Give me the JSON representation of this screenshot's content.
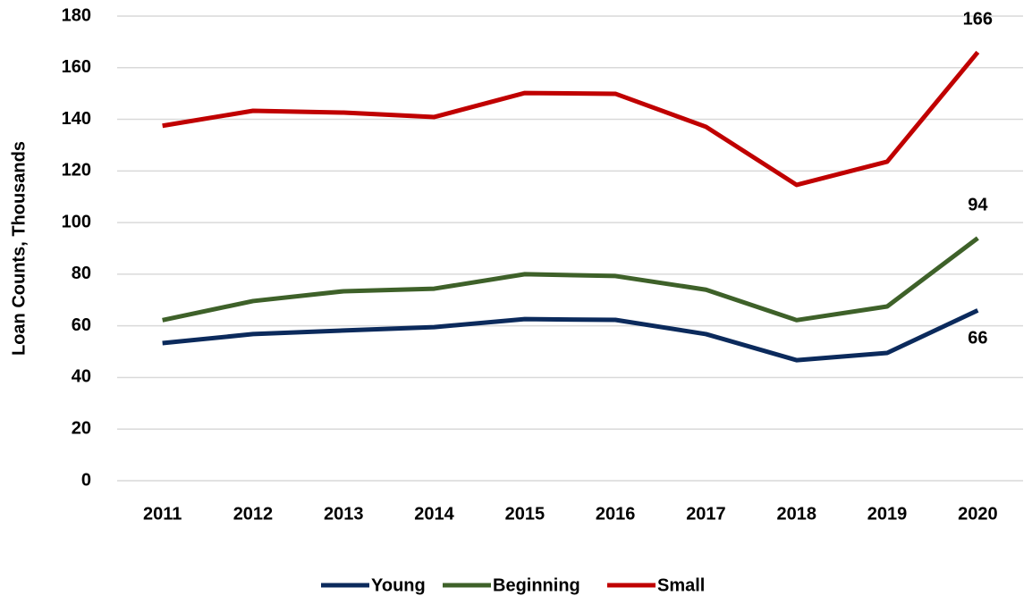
{
  "chart_data": {
    "type": "line",
    "y_label": "Loan Counts, Thousands",
    "categories": [
      "2011",
      "2012",
      "2013",
      "2014",
      "2015",
      "2016",
      "2017",
      "2018",
      "2019",
      "2020"
    ],
    "series": [
      {
        "name": "Young",
        "color": "#0b2a5c",
        "values": [
          53.3,
          56.8,
          58.2,
          59.5,
          62.6,
          62.3,
          56.8,
          46.7,
          49.5,
          66
        ],
        "label_last": "below"
      },
      {
        "name": "Beginning",
        "color": "#3e6129",
        "values": [
          62.2,
          69.6,
          73.4,
          74.4,
          80,
          79.3,
          74,
          62.2,
          67.5,
          94
        ],
        "label_last": "above"
      },
      {
        "name": "Small",
        "color": "#c00000",
        "values": [
          137.5,
          143.3,
          142.6,
          140.9,
          150.2,
          149.9,
          137.1,
          114.6,
          123.6,
          166
        ],
        "label_last": "above"
      }
    ],
    "ylim": [
      0,
      180
    ],
    "yticks": [
      0,
      20,
      40,
      60,
      80,
      100,
      120,
      140,
      160,
      180
    ],
    "grid": true,
    "legend": "bottom"
  }
}
